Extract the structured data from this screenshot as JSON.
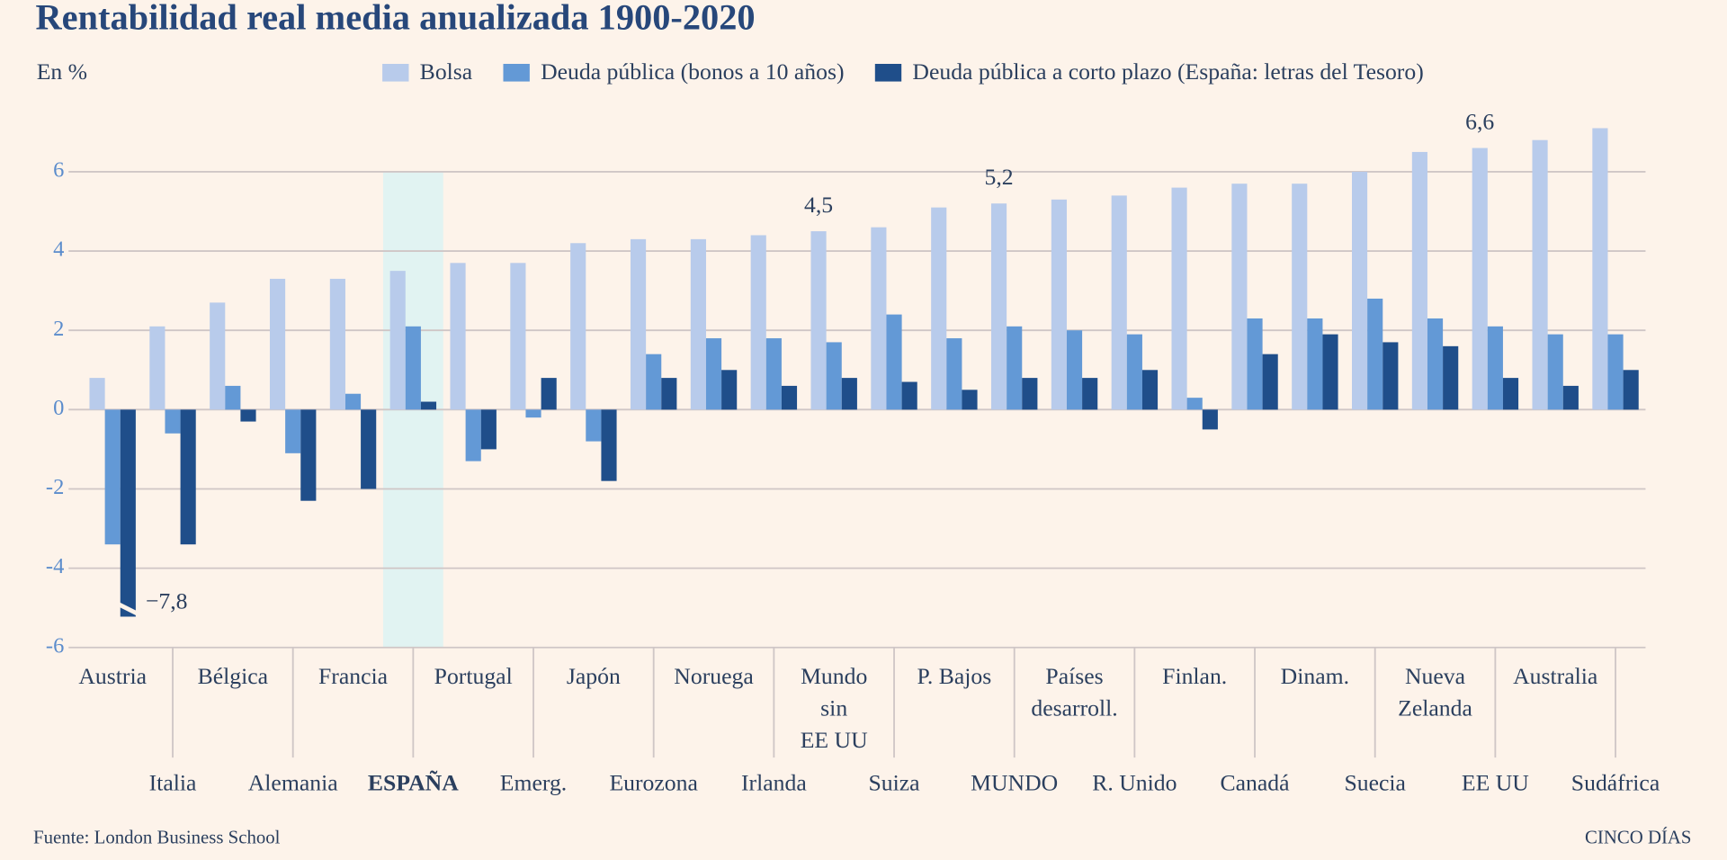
{
  "chart_data": {
    "type": "bar",
    "title": "Rentabilidad real media anualizada 1900-2020",
    "y_label": "En %",
    "source": "Fuente: London Business School",
    "credit": "CINCO DÍAS",
    "categories": [
      "Austria",
      "Italia",
      "Bélgica",
      "Alemania",
      "Francia",
      "ESPAÑA",
      "Portugal",
      "Emerg.",
      "Japón",
      "Eurozona",
      "Noruega",
      "Irlanda",
      "Mundo\nsin\nEE UU",
      "Suiza",
      "P. Bajos",
      "MUNDO",
      "Países\ndesarroll.",
      "R. Unido",
      "Finlan.",
      "Canadá",
      "Dinam.",
      "Suecia",
      "Nueva\nZelanda",
      "EE UU",
      "Australia",
      "Sudáfrica"
    ],
    "highlight": "ESPAÑA",
    "series": [
      {
        "name": "Bolsa",
        "color": "#b8cbeb",
        "values": [
          0.8,
          2.1,
          2.7,
          3.3,
          3.3,
          3.5,
          3.7,
          3.7,
          4.2,
          4.3,
          4.3,
          4.4,
          4.5,
          4.6,
          5.1,
          5.2,
          5.3,
          5.4,
          5.6,
          5.7,
          5.7,
          6.0,
          6.5,
          6.6,
          6.8,
          7.1
        ],
        "value_labels": [
          null,
          null,
          null,
          null,
          null,
          null,
          null,
          null,
          null,
          null,
          null,
          null,
          "4,5",
          null,
          null,
          "5,2",
          null,
          null,
          null,
          null,
          null,
          null,
          null,
          "6,6",
          null,
          null
        ]
      },
      {
        "name": "Deuda pública (bonos a 10 años)",
        "color": "#6399d6",
        "values": [
          -3.4,
          -0.6,
          0.6,
          -1.1,
          0.4,
          2.1,
          -1.3,
          -0.2,
          -0.8,
          1.4,
          1.8,
          1.8,
          1.7,
          2.4,
          1.8,
          2.1,
          2.0,
          1.9,
          0.3,
          2.3,
          2.3,
          2.8,
          2.3,
          2.1,
          1.9,
          1.9
        ]
      },
      {
        "name": "Deuda pública a corto plazo (España: letras del Tesoro)",
        "color": "#1f4e8a",
        "values": [
          -7.8,
          -3.4,
          -0.3,
          -2.3,
          -2.0,
          0.2,
          -1.0,
          0.8,
          -1.8,
          0.8,
          1.0,
          0.6,
          0.8,
          0.7,
          0.5,
          0.8,
          0.8,
          1.0,
          -0.5,
          1.4,
          1.9,
          1.7,
          1.6,
          0.8,
          0.6,
          1.0
        ],
        "value_labels": [
          "−7,8",
          null,
          null,
          null,
          null,
          null,
          null,
          null,
          null,
          null,
          null,
          null,
          null,
          null,
          null,
          null,
          null,
          null,
          null,
          null,
          null,
          null,
          null,
          null,
          null,
          null
        ]
      }
    ],
    "ylim": [
      -6,
      7.5
    ],
    "yticks": [
      -6,
      -4,
      -2,
      0,
      2,
      4,
      6
    ],
    "grid": true,
    "legend": "top"
  }
}
